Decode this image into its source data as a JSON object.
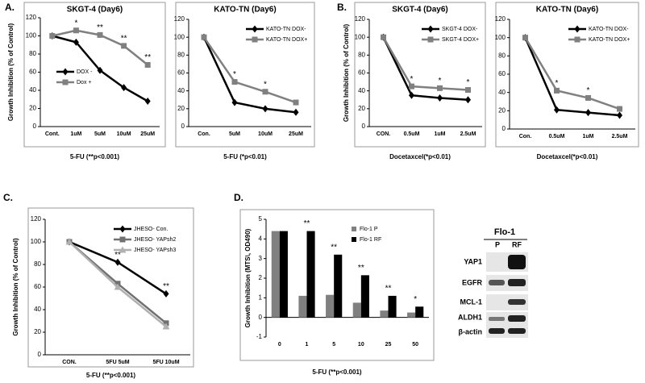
{
  "panels": [
    "A.",
    "B.",
    "C.",
    "D."
  ],
  "chart_data": [
    {
      "type": "line",
      "title": "SKGT-4 (Day6)",
      "x_label": "5-FU (**p<0.001)",
      "y_label": "Growth Inhibition (% of Control)",
      "categories": [
        "Cont.",
        "1uM",
        "5uM",
        "10uM",
        "25uM"
      ],
      "ylim": [
        0,
        120
      ],
      "yticks": [
        0,
        20,
        40,
        60,
        80,
        100,
        120
      ],
      "legend": "lower left",
      "series": [
        {
          "name": "DOX -",
          "color": "#000000",
          "marker": "diamond",
          "values": [
            100,
            93,
            62,
            43,
            28
          ]
        },
        {
          "name": "Dox +",
          "color": "#808080",
          "marker": "square",
          "values": [
            100,
            106,
            101,
            89,
            68
          ]
        }
      ],
      "annotations": [
        {
          "x": "1uM",
          "text": "*"
        },
        {
          "x": "5uM",
          "text": "**"
        },
        {
          "x": "10uM",
          "text": "**"
        },
        {
          "x": "25uM",
          "text": "**"
        }
      ]
    },
    {
      "type": "line",
      "title": "KATO-TN (Day6)",
      "x_label": "5-FU (*p<0.01)",
      "categories": [
        "Con.",
        "5uM",
        "10uM",
        "25uM"
      ],
      "ylim": [
        0,
        120
      ],
      "yticks": [
        0,
        20,
        40,
        60,
        80,
        100,
        120
      ],
      "legend": "upper right",
      "series": [
        {
          "name": "KATO-TN DOX-",
          "color": "#000000",
          "marker": "diamond",
          "values": [
            100,
            27,
            20,
            16
          ]
        },
        {
          "name": "KATO-TN DOX+",
          "color": "#808080",
          "marker": "square",
          "values": [
            100,
            50,
            39,
            27
          ]
        }
      ],
      "annotations": [
        {
          "x": "5uM",
          "text": "*"
        },
        {
          "x": "10uM",
          "text": "*"
        }
      ]
    },
    {
      "type": "line",
      "title": "SKGT-4 (Day6)",
      "x_label": "Docetaxcel(*p<0.01)",
      "y_label": "Growth Inhibition (% of Control)",
      "categories": [
        "CON.",
        "0.5uM",
        "1uM",
        "2.5uM"
      ],
      "ylim": [
        0,
        120
      ],
      "yticks": [
        0,
        20,
        40,
        60,
        80,
        100,
        120
      ],
      "legend": "upper right",
      "series": [
        {
          "name": "SKGT-4 DOX-",
          "color": "#000000",
          "marker": "diamond",
          "values": [
            100,
            35,
            32,
            30
          ]
        },
        {
          "name": "SKGT-4 DOX+",
          "color": "#808080",
          "marker": "square",
          "values": [
            100,
            45,
            43,
            41
          ]
        }
      ],
      "annotations": [
        {
          "x": "0.5uM",
          "text": "*"
        },
        {
          "x": "1uM",
          "text": "*"
        },
        {
          "x": "2.5uM",
          "text": "*"
        }
      ]
    },
    {
      "type": "line",
      "title": "KATO-TN (Day6)",
      "x_label": "Docetaxcel(*p<0.01)",
      "categories": [
        "Con.",
        "0.5uM",
        "1uM",
        "2.5uM"
      ],
      "ylim": [
        0,
        120
      ],
      "yticks": [
        0,
        20,
        40,
        60,
        80,
        100,
        120
      ],
      "legend": "upper right",
      "series": [
        {
          "name": "KATO-TN  DOX-",
          "color": "#000000",
          "marker": "diamond",
          "values": [
            100,
            21,
            18,
            15
          ]
        },
        {
          "name": "KATO-TN DOX+",
          "color": "#808080",
          "marker": "square",
          "values": [
            100,
            42,
            34,
            22
          ]
        }
      ],
      "annotations": [
        {
          "x": "0.5uM",
          "text": "*"
        },
        {
          "x": "1uM",
          "text": "*"
        }
      ]
    },
    {
      "type": "line",
      "x_label": "5-FU (**p<0.001)",
      "y_label": "Growth Inhibition (% of Control)",
      "categories": [
        "CON.",
        "5FU 5uM",
        "5FU 10uM"
      ],
      "ylim": [
        0,
        120
      ],
      "yticks": [
        0,
        20,
        40,
        60,
        80,
        100,
        120
      ],
      "legend": "upper right",
      "series": [
        {
          "name": "JHESO- Con.",
          "color": "#000000",
          "marker": "diamond",
          "values": [
            100,
            82,
            54
          ]
        },
        {
          "name": "JHESO- YAPsh2",
          "color": "#707070",
          "marker": "square",
          "values": [
            100,
            63,
            28
          ]
        },
        {
          "name": "JHESO- YAPsh3",
          "color": "#b0b0b0",
          "marker": "triangle",
          "values": [
            100,
            60,
            25
          ]
        }
      ],
      "annotations": [
        {
          "x": "5FU 5uM",
          "text": "**"
        },
        {
          "x": "5FU 10uM",
          "text": "**"
        }
      ]
    },
    {
      "type": "bar",
      "x_label": "5-FU (**p<0.001)",
      "y_label": "Growth Inhibition (MTS\\, OD490)",
      "categories": [
        "0",
        "1",
        "5",
        "10",
        "25",
        "50"
      ],
      "ylim": [
        -1,
        5
      ],
      "yticks": [
        -1,
        0,
        1,
        2,
        3,
        4,
        5
      ],
      "legend": "upper right",
      "series": [
        {
          "name": "Flo-1 P",
          "color": "#808080",
          "values": [
            4.4,
            1.1,
            1.15,
            0.75,
            0.35,
            0.25
          ]
        },
        {
          "name": "Flo-1 RF",
          "color": "#000000",
          "values": [
            4.4,
            4.4,
            3.2,
            2.15,
            1.1,
            0.55
          ]
        }
      ],
      "annotations": [
        {
          "x": "1",
          "text": "**"
        },
        {
          "x": "5",
          "text": "**"
        },
        {
          "x": "10",
          "text": "**"
        },
        {
          "x": "25",
          "text": "**"
        },
        {
          "x": "50",
          "text": "*"
        }
      ]
    }
  ],
  "blot": {
    "title": "Flo-1",
    "columns": [
      "P",
      "RF"
    ],
    "rows": [
      "YAP1",
      "EGFR",
      "MCL-1",
      "ALDH1",
      "β-actin"
    ]
  }
}
